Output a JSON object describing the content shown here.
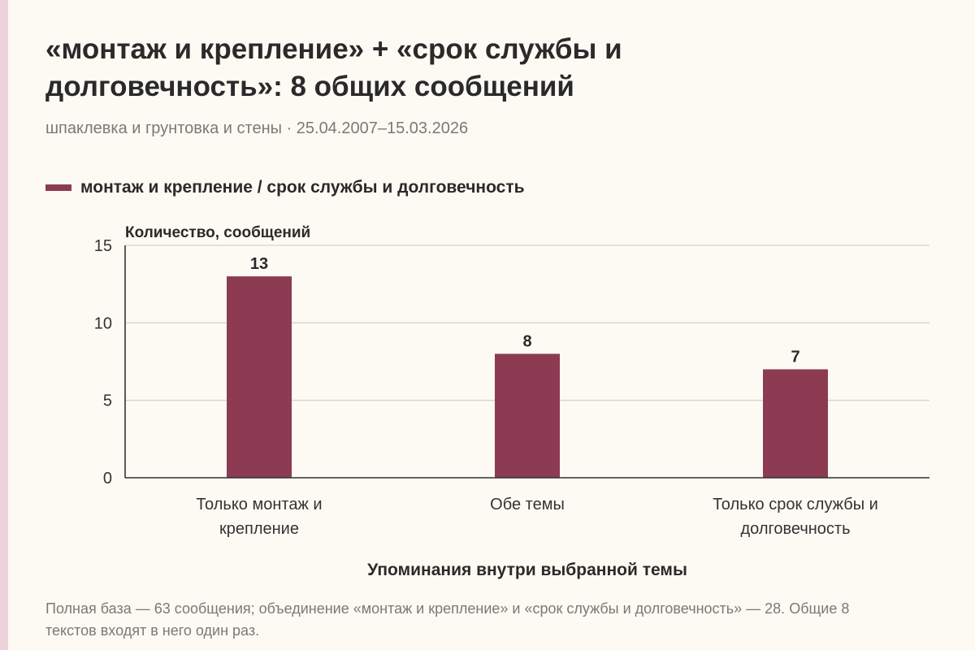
{
  "header": {
    "title": "«монтаж и крепление» + «срок службы и долговечность»: 8 общих сообщений",
    "subtitle": "шпаклевка и грунтовка и стены · 25.04.2007–15.03.2026"
  },
  "colors": {
    "bar": "#8c3b52",
    "background": "#fcfaf3",
    "accent_strip": "#ecd3db",
    "grid": "#d8d4cc",
    "axis": "#333333"
  },
  "footnote": "Полная база — 63 сообщения; объединение «монтаж и крепление» и «срок службы и долговечность» — 28. Общие 8 текстов входят в него один раз.",
  "chart_data": {
    "type": "bar",
    "categories": [
      [
        "Только монтаж и",
        "крепление"
      ],
      [
        "Обе темы"
      ],
      [
        "Только срок службы и",
        "долговечность"
      ]
    ],
    "series": [
      {
        "name": "монтаж и крепление / срок службы и долговечность",
        "values": [
          13,
          8,
          7
        ]
      }
    ],
    "data_labels": [
      "13",
      "8",
      "7"
    ],
    "ylabel": "Количество, сообщений",
    "xlabel": "Упоминания внутри выбранной темы",
    "ylim": [
      0,
      15
    ],
    "yticks": [
      0,
      5,
      10,
      15
    ],
    "grid": true,
    "legend": "top-left"
  }
}
